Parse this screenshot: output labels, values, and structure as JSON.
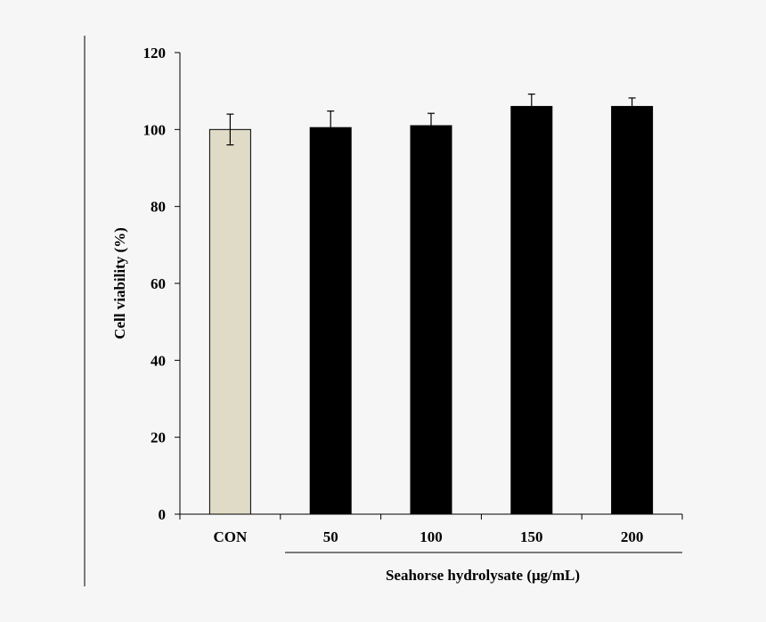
{
  "chart_data": {
    "type": "bar",
    "title": "",
    "ylabel": "Cell viability (%)",
    "xlabel": "Seahorse hydrolysate (μg/mL)",
    "ylim": [
      0,
      120
    ],
    "yticks": [
      0,
      20,
      40,
      60,
      80,
      100,
      120
    ],
    "categories": [
      "CON",
      "50",
      "100",
      "150",
      "200"
    ],
    "values": [
      100,
      100.5,
      101,
      106,
      106
    ],
    "errors": [
      4,
      4.3,
      3.2,
      3.2,
      2.2
    ],
    "bar_colors": [
      "#dfdbc6",
      "#000000",
      "#000000",
      "#000000",
      "#000000"
    ],
    "group_bracket": {
      "label": "Seahorse hydrolysate (μg/mL)",
      "spans": [
        "50",
        "100",
        "150",
        "200"
      ]
    }
  }
}
